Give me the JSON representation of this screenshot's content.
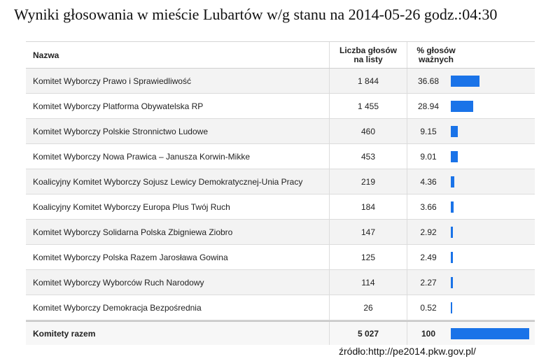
{
  "title": "Wyniki głosowania w mieście Lubartów w/g stanu na 2014-05-26 godz.:04:30",
  "header": {
    "name": "Nazwa",
    "count_line1": "Liczba głosów",
    "count_line2": "na listy",
    "pct_line1": "% głosów",
    "pct_line2": "ważnych"
  },
  "rows": [
    {
      "name": "Komitet Wyborczy Prawo i Sprawiedliwość",
      "count": "1 844",
      "pct": "36.68"
    },
    {
      "name": "Komitet Wyborczy Platforma Obywatelska RP",
      "count": "1 455",
      "pct": "28.94"
    },
    {
      "name": "Komitet Wyborczy Polskie Stronnictwo Ludowe",
      "count": "460",
      "pct": "9.15"
    },
    {
      "name": "Komitet Wyborczy Nowa Prawica – Janusza Korwin-Mikke",
      "count": "453",
      "pct": "9.01"
    },
    {
      "name": "Koalicyjny Komitet Wyborczy Sojusz Lewicy Demokratycznej-Unia Pracy",
      "count": "219",
      "pct": "4.36"
    },
    {
      "name": "Koalicyjny Komitet Wyborczy Europa Plus Twój Ruch",
      "count": "184",
      "pct": "3.66"
    },
    {
      "name": "Komitet Wyborczy Solidarna Polska Zbigniewa Ziobro",
      "count": "147",
      "pct": "2.92"
    },
    {
      "name": "Komitet Wyborczy Polska Razem Jarosława Gowina",
      "count": "125",
      "pct": "2.49"
    },
    {
      "name": "Komitet Wyborczy Wyborców Ruch Narodowy",
      "count": "114",
      "pct": "2.27"
    },
    {
      "name": "Komitet Wyborczy Demokracja Bezpośrednia",
      "count": "26",
      "pct": "0.52"
    }
  ],
  "total": {
    "name": "Komitety razem",
    "count": "5 027",
    "pct": "100"
  },
  "bar_color": "#1a73e8",
  "source": "źródło:http://pe2014.pkw.gov.pl/"
}
